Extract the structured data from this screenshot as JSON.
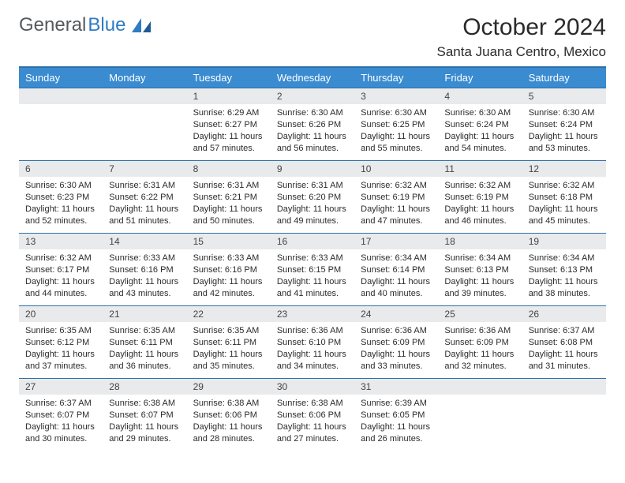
{
  "brand": {
    "part1": "General",
    "part2": "Blue"
  },
  "title": "October 2024",
  "location": "Santa Juana Centro, Mexico",
  "colors": {
    "header_bg": "#3a8bd0",
    "header_text": "#ffffff",
    "rule": "#2f6fa8",
    "daynum_bg": "#e9eaec",
    "text": "#2b2b2b",
    "logo_gray": "#555a5e",
    "logo_blue": "#2f7bc4",
    "page_bg": "#ffffff"
  },
  "typography": {
    "title_fontsize": 30,
    "location_fontsize": 17,
    "dayhead_fontsize": 13,
    "daynum_fontsize": 12,
    "body_fontsize": 11
  },
  "day_headers": [
    "Sunday",
    "Monday",
    "Tuesday",
    "Wednesday",
    "Thursday",
    "Friday",
    "Saturday"
  ],
  "weeks": [
    [
      null,
      null,
      {
        "n": "1",
        "sr": "6:29 AM",
        "ss": "6:27 PM",
        "dl": "11 hours and 57 minutes."
      },
      {
        "n": "2",
        "sr": "6:30 AM",
        "ss": "6:26 PM",
        "dl": "11 hours and 56 minutes."
      },
      {
        "n": "3",
        "sr": "6:30 AM",
        "ss": "6:25 PM",
        "dl": "11 hours and 55 minutes."
      },
      {
        "n": "4",
        "sr": "6:30 AM",
        "ss": "6:24 PM",
        "dl": "11 hours and 54 minutes."
      },
      {
        "n": "5",
        "sr": "6:30 AM",
        "ss": "6:24 PM",
        "dl": "11 hours and 53 minutes."
      }
    ],
    [
      {
        "n": "6",
        "sr": "6:30 AM",
        "ss": "6:23 PM",
        "dl": "11 hours and 52 minutes."
      },
      {
        "n": "7",
        "sr": "6:31 AM",
        "ss": "6:22 PM",
        "dl": "11 hours and 51 minutes."
      },
      {
        "n": "8",
        "sr": "6:31 AM",
        "ss": "6:21 PM",
        "dl": "11 hours and 50 minutes."
      },
      {
        "n": "9",
        "sr": "6:31 AM",
        "ss": "6:20 PM",
        "dl": "11 hours and 49 minutes."
      },
      {
        "n": "10",
        "sr": "6:32 AM",
        "ss": "6:19 PM",
        "dl": "11 hours and 47 minutes."
      },
      {
        "n": "11",
        "sr": "6:32 AM",
        "ss": "6:19 PM",
        "dl": "11 hours and 46 minutes."
      },
      {
        "n": "12",
        "sr": "6:32 AM",
        "ss": "6:18 PM",
        "dl": "11 hours and 45 minutes."
      }
    ],
    [
      {
        "n": "13",
        "sr": "6:32 AM",
        "ss": "6:17 PM",
        "dl": "11 hours and 44 minutes."
      },
      {
        "n": "14",
        "sr": "6:33 AM",
        "ss": "6:16 PM",
        "dl": "11 hours and 43 minutes."
      },
      {
        "n": "15",
        "sr": "6:33 AM",
        "ss": "6:16 PM",
        "dl": "11 hours and 42 minutes."
      },
      {
        "n": "16",
        "sr": "6:33 AM",
        "ss": "6:15 PM",
        "dl": "11 hours and 41 minutes."
      },
      {
        "n": "17",
        "sr": "6:34 AM",
        "ss": "6:14 PM",
        "dl": "11 hours and 40 minutes."
      },
      {
        "n": "18",
        "sr": "6:34 AM",
        "ss": "6:13 PM",
        "dl": "11 hours and 39 minutes."
      },
      {
        "n": "19",
        "sr": "6:34 AM",
        "ss": "6:13 PM",
        "dl": "11 hours and 38 minutes."
      }
    ],
    [
      {
        "n": "20",
        "sr": "6:35 AM",
        "ss": "6:12 PM",
        "dl": "11 hours and 37 minutes."
      },
      {
        "n": "21",
        "sr": "6:35 AM",
        "ss": "6:11 PM",
        "dl": "11 hours and 36 minutes."
      },
      {
        "n": "22",
        "sr": "6:35 AM",
        "ss": "6:11 PM",
        "dl": "11 hours and 35 minutes."
      },
      {
        "n": "23",
        "sr": "6:36 AM",
        "ss": "6:10 PM",
        "dl": "11 hours and 34 minutes."
      },
      {
        "n": "24",
        "sr": "6:36 AM",
        "ss": "6:09 PM",
        "dl": "11 hours and 33 minutes."
      },
      {
        "n": "25",
        "sr": "6:36 AM",
        "ss": "6:09 PM",
        "dl": "11 hours and 32 minutes."
      },
      {
        "n": "26",
        "sr": "6:37 AM",
        "ss": "6:08 PM",
        "dl": "11 hours and 31 minutes."
      }
    ],
    [
      {
        "n": "27",
        "sr": "6:37 AM",
        "ss": "6:07 PM",
        "dl": "11 hours and 30 minutes."
      },
      {
        "n": "28",
        "sr": "6:38 AM",
        "ss": "6:07 PM",
        "dl": "11 hours and 29 minutes."
      },
      {
        "n": "29",
        "sr": "6:38 AM",
        "ss": "6:06 PM",
        "dl": "11 hours and 28 minutes."
      },
      {
        "n": "30",
        "sr": "6:38 AM",
        "ss": "6:06 PM",
        "dl": "11 hours and 27 minutes."
      },
      {
        "n": "31",
        "sr": "6:39 AM",
        "ss": "6:05 PM",
        "dl": "11 hours and 26 minutes."
      },
      null,
      null
    ]
  ],
  "labels": {
    "sunrise": "Sunrise:",
    "sunset": "Sunset:",
    "daylight": "Daylight:"
  }
}
